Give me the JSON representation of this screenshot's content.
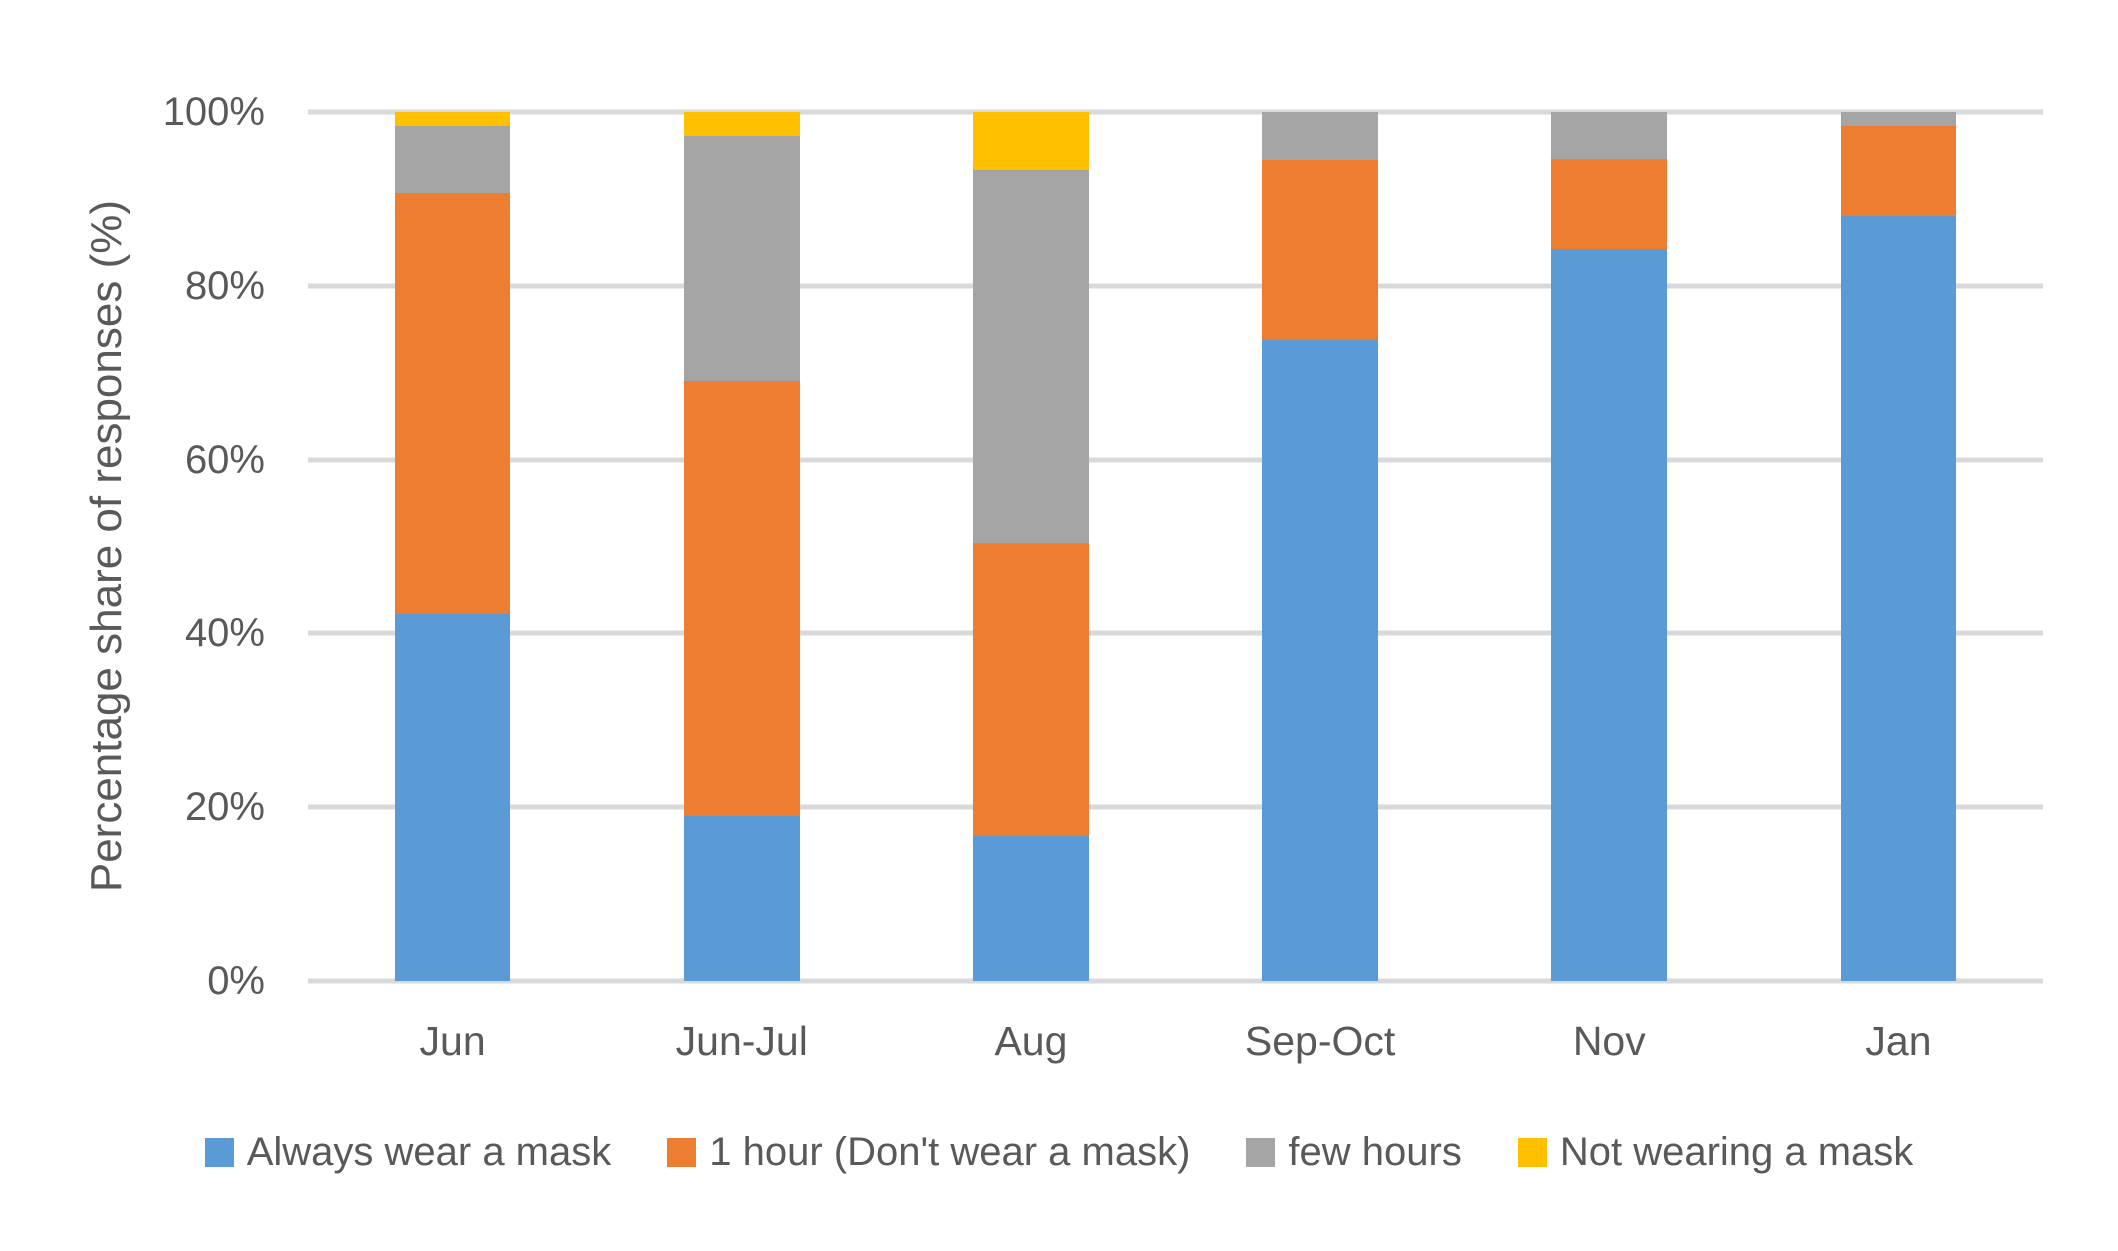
{
  "chart_data": {
    "type": "bar",
    "stacked": true,
    "stacked_100_percent": true,
    "title": "",
    "xlabel": "",
    "ylabel": "Percentage share of responses (%)",
    "ylim": [
      0,
      100
    ],
    "grid": true,
    "grid_color": "#d9d9d9",
    "text_color": "#595959",
    "legend_position": "bottom",
    "y_ticks": [
      {
        "label": "0%",
        "value": 0
      },
      {
        "label": "20%",
        "value": 20
      },
      {
        "label": "40%",
        "value": 40
      },
      {
        "label": "60%",
        "value": 60
      },
      {
        "label": "80%",
        "value": 80
      },
      {
        "label": "100%",
        "value": 100
      }
    ],
    "categories": [
      "Jun",
      "Jun-Jul",
      "Aug",
      "Sep-Oct",
      "Nov",
      "Jan"
    ],
    "series": [
      {
        "name": "Always wear a mask",
        "color": "#5b9bd5",
        "values": [
          42.2,
          19.0,
          16.7,
          73.8,
          84.2,
          88.0
        ]
      },
      {
        "name": "1 hour (Don't wear a mask)",
        "color": "#ed7d31",
        "values": [
          48.5,
          50.0,
          33.7,
          20.7,
          10.4,
          10.4
        ]
      },
      {
        "name": "few hours",
        "color": "#a5a5a5",
        "values": [
          7.7,
          28.2,
          42.9,
          5.5,
          5.4,
          1.6
        ]
      },
      {
        "name": "Not wearing a mask",
        "color": "#ffc000",
        "values": [
          1.6,
          2.8,
          6.7,
          0.0,
          0.0,
          0.0
        ]
      }
    ]
  }
}
